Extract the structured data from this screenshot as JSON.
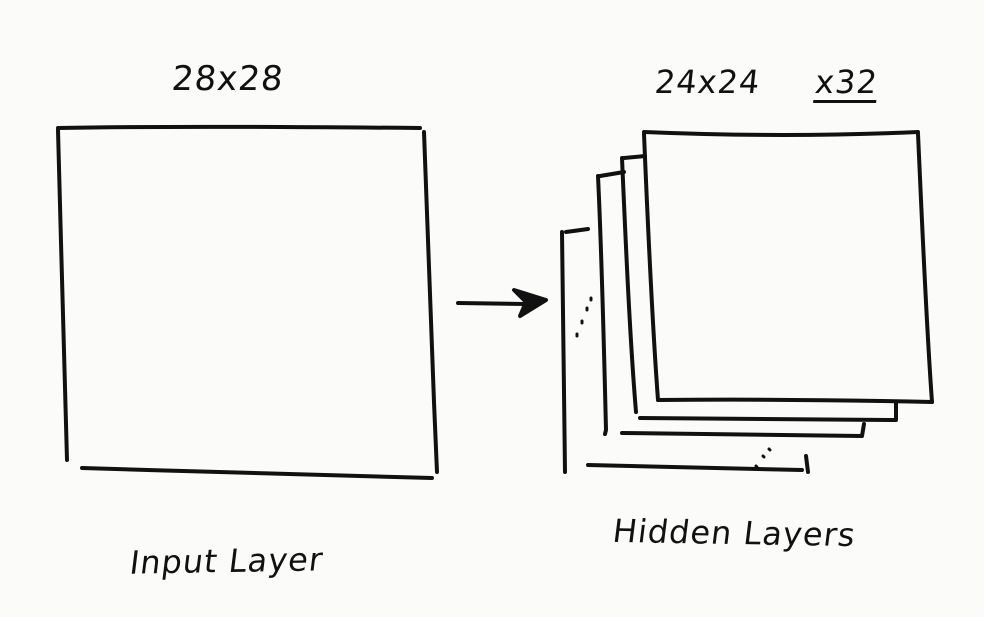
{
  "input_layer": {
    "dimensions": "28x28",
    "caption": "Input Layer"
  },
  "hidden_layers": {
    "dimensions": "24x24",
    "count": "x32",
    "caption": "Hidden Layers"
  },
  "colors": {
    "ink": "#111111",
    "paper": "#fbfbf9"
  }
}
